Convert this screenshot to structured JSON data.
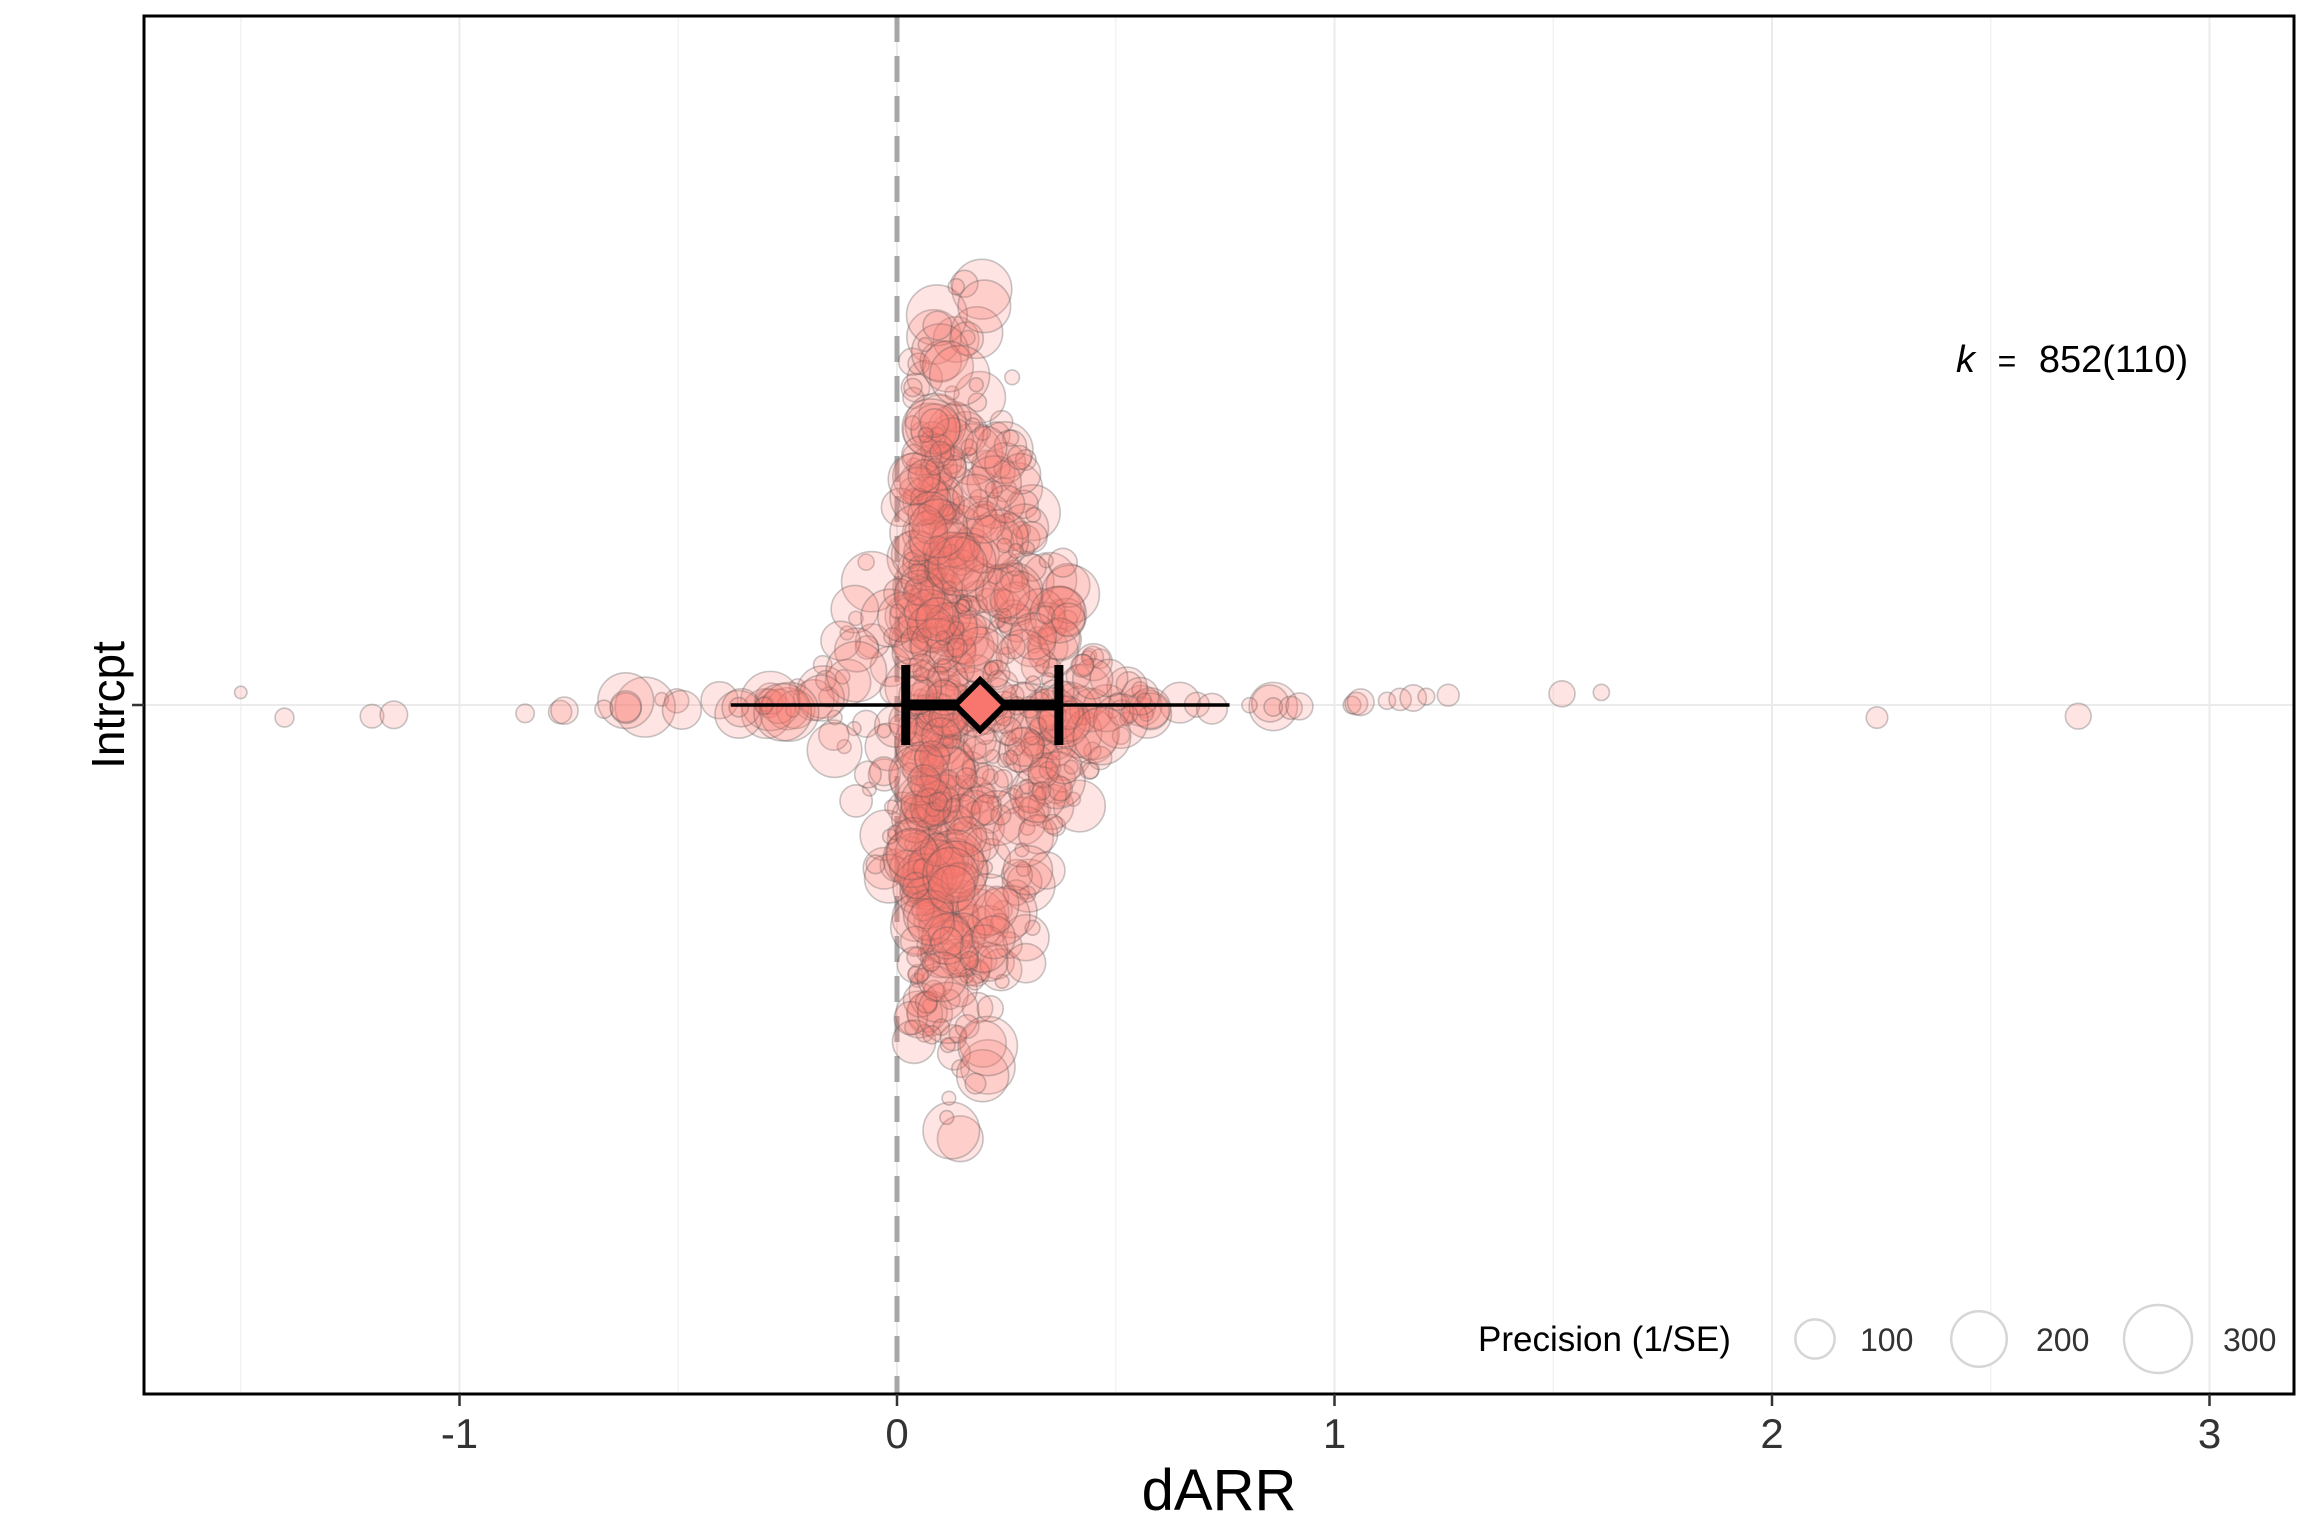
{
  "chart_data": {
    "type": "scatter",
    "subtype": "orchard-plot",
    "xlabel": "dARR",
    "ylabel": "Intrcpt",
    "category": "Intrcpt",
    "xlim": [
      -1.72,
      3.2
    ],
    "xticks": [
      -1,
      0,
      1,
      2,
      3
    ],
    "xtick_labels": [
      "-1",
      "0",
      "1",
      "2",
      "3"
    ],
    "grid": true,
    "reference_line": {
      "x": 0,
      "style": "dashed",
      "color": "#a6a6a6"
    },
    "estimate": {
      "mean": 0.19,
      "ci": [
        0.02,
        0.37
      ],
      "pi": [
        -0.38,
        0.76
      ],
      "fill": "#f8766d"
    },
    "annotation": {
      "k_label": "k",
      "equals": "=",
      "value": "852(110)"
    },
    "legend": {
      "title": "Precision (1/SE)",
      "position": "bottom-right",
      "entries": [
        {
          "label": "100",
          "precision": 100
        },
        {
          "label": "200",
          "precision": 200
        },
        {
          "label": "300",
          "precision": 300
        }
      ]
    },
    "points": {
      "count": 852,
      "fill": "#f8766d",
      "outliers_x": [
        -1.5,
        -1.4,
        -1.2,
        -1.15,
        -0.85,
        -0.77,
        -0.76,
        -0.67,
        0.9,
        0.92,
        1.04,
        1.05,
        1.06,
        1.12,
        1.15,
        1.18,
        1.21,
        1.26,
        1.52,
        1.61,
        2.24,
        2.7
      ]
    }
  }
}
